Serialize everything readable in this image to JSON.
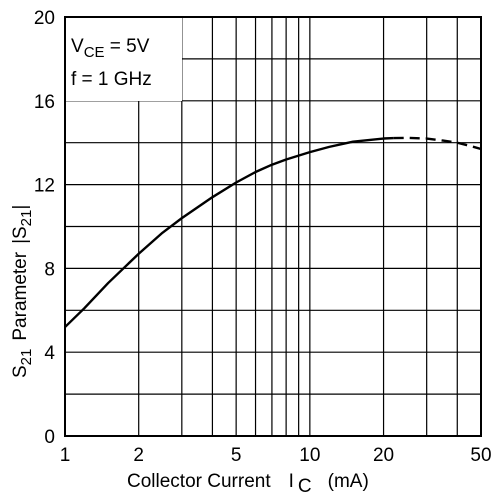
{
  "chart_data": {
    "type": "line",
    "x_scale": "log",
    "xlabel": "Collector Current",
    "xlabel_symbol": "I",
    "xlabel_symbol_sub": "C",
    "xlabel_unit": "(mA)",
    "ylabel_prefix": "S",
    "ylabel_prefix_sub": "21",
    "ylabel_word": "Parameter",
    "ylabel_abs": "|S",
    "ylabel_abs_sub": "21",
    "ylabel_abs_close": "|",
    "xlim": [
      1,
      50
    ],
    "ylim": [
      0,
      20
    ],
    "x_ticks": [
      1,
      2,
      5,
      10,
      20,
      50
    ],
    "x_gridlines": [
      1,
      2,
      3,
      4,
      5,
      6,
      7,
      8,
      9,
      10,
      20,
      30,
      40,
      50
    ],
    "y_ticks": [
      0,
      4,
      8,
      12,
      16,
      20
    ],
    "y_gridlines": [
      0,
      2,
      4,
      6,
      8,
      10,
      12,
      14,
      16,
      18,
      20
    ],
    "grid": true,
    "annotation": {
      "vce_main": "V",
      "vce_sub": "CE",
      "vce_rest": " = 5V",
      "freq": "f = 1 GHz"
    },
    "series": [
      {
        "style": "solid",
        "x": [
          1,
          1.2,
          1.5,
          2,
          2.5,
          3,
          4,
          5,
          6,
          7,
          8,
          10,
          12,
          15,
          20,
          22
        ],
        "y": [
          5.2,
          6.1,
          7.3,
          8.7,
          9.7,
          10.4,
          11.4,
          12.1,
          12.6,
          12.95,
          13.2,
          13.55,
          13.8,
          14.05,
          14.2,
          14.22
        ]
      },
      {
        "style": "dashed",
        "x": [
          22,
          25,
          30,
          35,
          40,
          45,
          50
        ],
        "y": [
          14.22,
          14.23,
          14.2,
          14.1,
          14.0,
          13.85,
          13.7
        ]
      }
    ]
  }
}
